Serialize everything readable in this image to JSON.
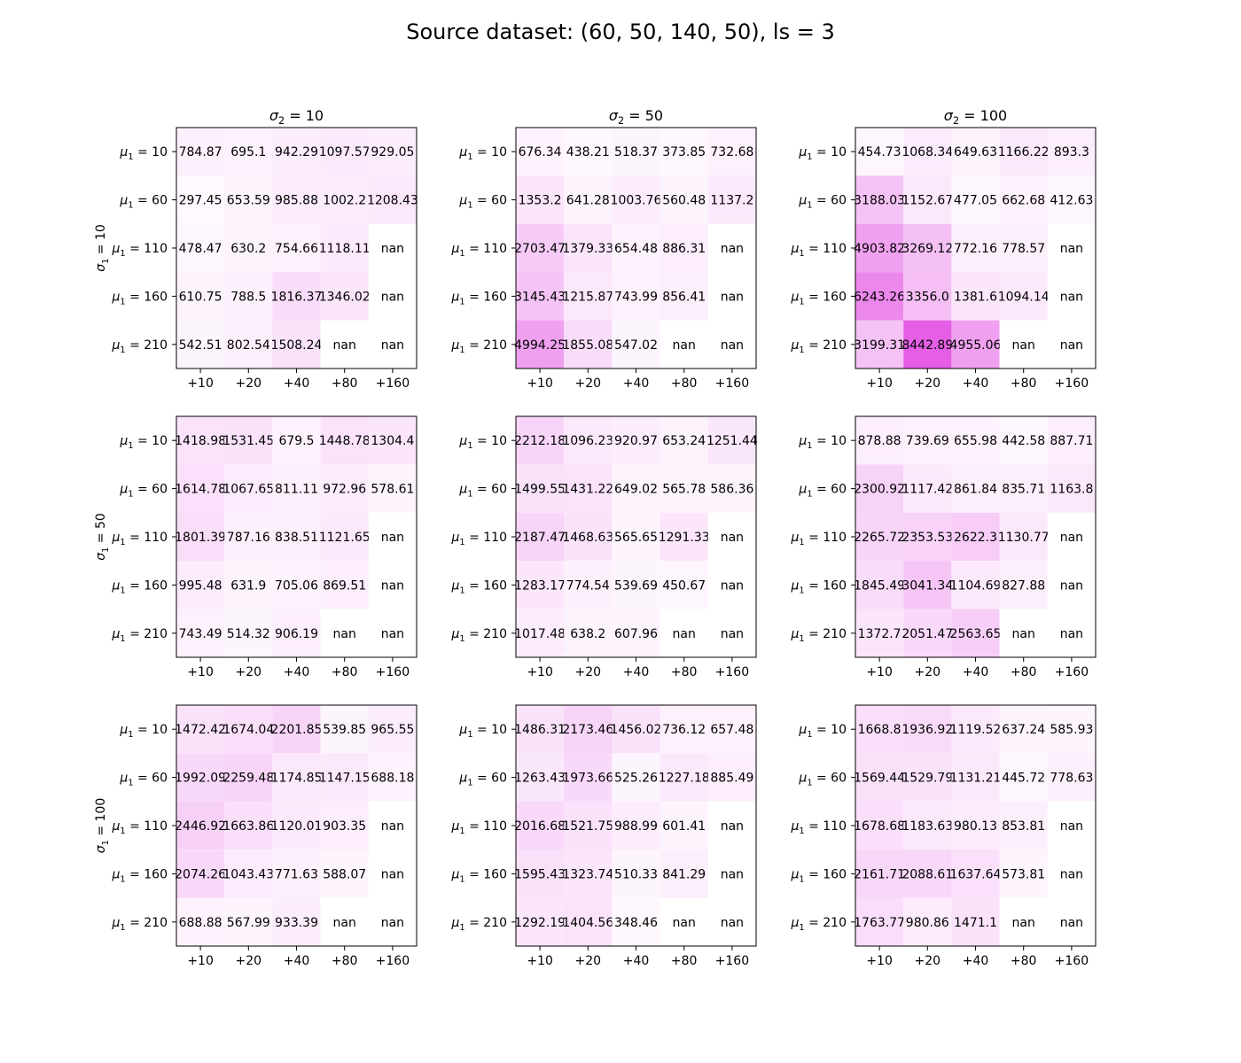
{
  "figure": {
    "title": "Source dataset: (60, 50, 140, 50), ls = 3",
    "colormap": {
      "low": "#ffffff",
      "high": "#e040e0"
    },
    "color_range": [
      0,
      10000
    ]
  },
  "chart_data": {
    "type": "heatmap",
    "x_tick_labels": [
      "+10",
      "+20",
      "+40",
      "+80",
      "+160"
    ],
    "y_tick_labels": [
      "μ1=10",
      "μ1=60",
      "μ1=110",
      "μ1=160",
      "μ1=210"
    ],
    "column_titles": [
      "σ2=10",
      "σ2=50",
      "σ2=100"
    ],
    "row_titles": [
      "σ1=10",
      "σ1=50",
      "σ1=100"
    ],
    "panels": [
      {
        "row": 0,
        "col": 0,
        "cells": [
          [
            "784.87",
            "695.1",
            "942.29",
            "1097.57",
            "929.05"
          ],
          [
            "297.45",
            "653.59",
            "985.88",
            "1002.2",
            "1208.43"
          ],
          [
            "478.47",
            "630.2",
            "754.66",
            "1118.11",
            "nan"
          ],
          [
            "610.75",
            "788.5",
            "1816.37",
            "1346.02",
            "nan"
          ],
          [
            "542.51",
            "802.54",
            "1508.24",
            "nan",
            "nan"
          ]
        ]
      },
      {
        "row": 0,
        "col": 1,
        "cells": [
          [
            "676.34",
            "438.21",
            "518.37",
            "373.85",
            "732.68"
          ],
          [
            "1353.2",
            "641.28",
            "1003.76",
            "560.48",
            "1137.2"
          ],
          [
            "2703.47",
            "1379.33",
            "654.48",
            "886.31",
            "nan"
          ],
          [
            "3145.43",
            "1215.87",
            "743.99",
            "856.41",
            "nan"
          ],
          [
            "4994.25",
            "1855.08",
            "547.02",
            "nan",
            "nan"
          ]
        ]
      },
      {
        "row": 0,
        "col": 2,
        "cells": [
          [
            "454.73",
            "1068.34",
            "649.63",
            "1166.22",
            "893.3"
          ],
          [
            "3188.03",
            "1152.67",
            "477.05",
            "662.68",
            "412.63"
          ],
          [
            "4903.82",
            "3269.12",
            "772.16",
            "778.57",
            "nan"
          ],
          [
            "6243.26",
            "3356.0",
            "1381.6",
            "1094.14",
            "nan"
          ],
          [
            "3199.31",
            "8442.89",
            "4955.06",
            "nan",
            "nan"
          ]
        ]
      },
      {
        "row": 1,
        "col": 0,
        "cells": [
          [
            "1418.98",
            "1531.45",
            "679.5",
            "1448.78",
            "1304.4"
          ],
          [
            "1614.78",
            "1067.65",
            "811.11",
            "972.96",
            "578.61"
          ],
          [
            "1801.39",
            "787.16",
            "838.51",
            "1121.65",
            "nan"
          ],
          [
            "995.48",
            "631.9",
            "705.06",
            "869.51",
            "nan"
          ],
          [
            "743.49",
            "514.32",
            "906.19",
            "nan",
            "nan"
          ]
        ]
      },
      {
        "row": 1,
        "col": 1,
        "cells": [
          [
            "2212.18",
            "1096.23",
            "920.97",
            "653.24",
            "1251.44"
          ],
          [
            "1499.55",
            "1431.22",
            "649.02",
            "565.78",
            "586.36"
          ],
          [
            "2187.47",
            "1468.63",
            "565.65",
            "1291.33",
            "nan"
          ],
          [
            "1283.17",
            "774.54",
            "539.69",
            "450.67",
            "nan"
          ],
          [
            "1017.48",
            "638.2",
            "607.96",
            "nan",
            "nan"
          ]
        ]
      },
      {
        "row": 1,
        "col": 2,
        "cells": [
          [
            "878.88",
            "739.69",
            "655.98",
            "442.58",
            "887.71"
          ],
          [
            "2300.92",
            "1117.42",
            "861.84",
            "835.71",
            "1163.8"
          ],
          [
            "2265.72",
            "2353.53",
            "2622.3",
            "1130.77",
            "nan"
          ],
          [
            "1845.49",
            "3041.34",
            "1104.69",
            "827.88",
            "nan"
          ],
          [
            "1372.7",
            "2051.47",
            "2563.65",
            "nan",
            "nan"
          ]
        ]
      },
      {
        "row": 2,
        "col": 0,
        "cells": [
          [
            "1472.42",
            "1674.04",
            "2201.85",
            "539.85",
            "965.55"
          ],
          [
            "1992.09",
            "2259.48",
            "1174.85",
            "1147.15",
            "688.18"
          ],
          [
            "2446.92",
            "1663.86",
            "1120.01",
            "903.35",
            "nan"
          ],
          [
            "2074.26",
            "1043.43",
            "771.63",
            "588.07",
            "nan"
          ],
          [
            "688.88",
            "567.99",
            "933.39",
            "nan",
            "nan"
          ]
        ]
      },
      {
        "row": 2,
        "col": 1,
        "cells": [
          [
            "1486.31",
            "2173.46",
            "1456.02",
            "736.12",
            "657.48"
          ],
          [
            "1263.43",
            "1973.66",
            "525.26",
            "1227.18",
            "885.49"
          ],
          [
            "2016.68",
            "1521.75",
            "988.99",
            "601.41",
            "nan"
          ],
          [
            "1595.43",
            "1323.74",
            "510.33",
            "841.29",
            "nan"
          ],
          [
            "1292.19",
            "1404.56",
            "348.46",
            "nan",
            "nan"
          ]
        ]
      },
      {
        "row": 2,
        "col": 2,
        "cells": [
          [
            "1668.8",
            "1936.92",
            "1119.52",
            "637.24",
            "585.93"
          ],
          [
            "1569.44",
            "1529.79",
            "1131.21",
            "445.72",
            "778.63"
          ],
          [
            "1678.68",
            "1183.63",
            "980.13",
            "853.81",
            "nan"
          ],
          [
            "2161.71",
            "2088.61",
            "1637.64",
            "573.81",
            "nan"
          ],
          [
            "1763.77",
            "980.86",
            "1471.1",
            "nan",
            "nan"
          ]
        ]
      }
    ]
  }
}
